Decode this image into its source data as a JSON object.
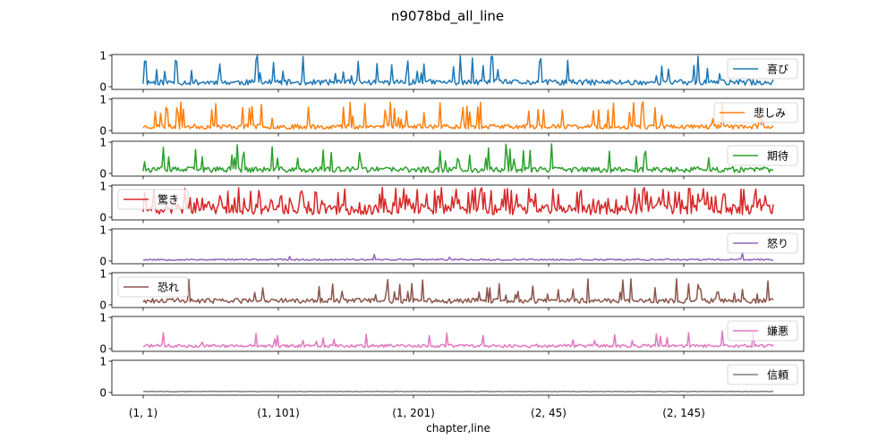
{
  "chart_data": {
    "type": "line",
    "title": "n9078bd_all_line",
    "xlabel": "chapter,line",
    "x_ticks": [
      "(1, 1)",
      "(1, 101)",
      "(1, 201)",
      "(2, 45)",
      "(2, 145)"
    ],
    "ylim": [
      0,
      1
    ],
    "y_ticks": [
      "0",
      "1"
    ],
    "grid": false,
    "n_points": 470,
    "series": [
      {
        "name": "喜び",
        "color": "#1f77b4",
        "legend": "upper-right"
      },
      {
        "name": "悲しみ",
        "color": "#ff7f0e",
        "legend": "upper-right"
      },
      {
        "name": "期待",
        "color": "#2ca02c",
        "legend": "upper-right"
      },
      {
        "name": "驚き",
        "color": "#d62728",
        "legend": "upper-left"
      },
      {
        "name": "怒り",
        "color": "#9467bd",
        "legend": "upper-right"
      },
      {
        "name": "恐れ",
        "color": "#8c564b",
        "legend": "upper-left"
      },
      {
        "name": "嫌悪",
        "color": "#e377c2",
        "legend": "upper-right"
      },
      {
        "name": "信頼",
        "color": "#7f7f7f",
        "legend": "upper-right"
      }
    ]
  }
}
